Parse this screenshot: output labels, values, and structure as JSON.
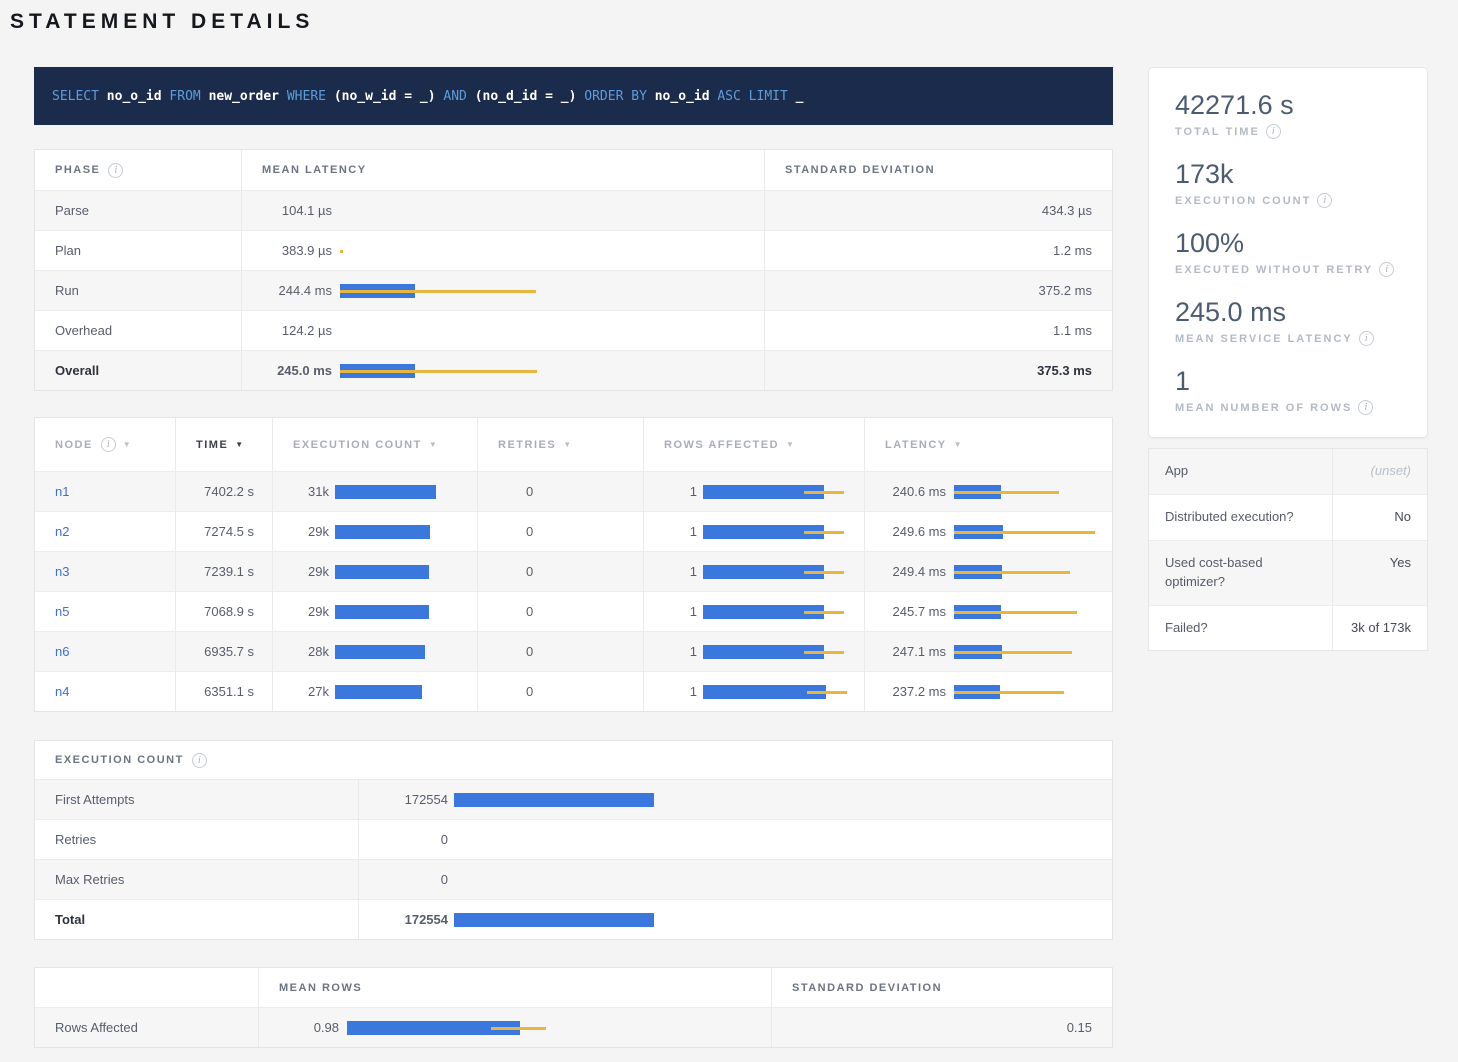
{
  "page_title": "STATEMENT DETAILS",
  "colors": {
    "bar_blue": "#3b78dd",
    "bar_yellow": "#e9b63d",
    "sql_background": "#1b2b4c",
    "sql_keyword": "#5e9dd8",
    "node_link": "#3f6fd8"
  },
  "sql": {
    "tokens": [
      {
        "t": "kw",
        "s": "SELECT "
      },
      {
        "t": "id",
        "s": "no_o_id "
      },
      {
        "t": "kw",
        "s": "FROM "
      },
      {
        "t": "id",
        "s": "new_order "
      },
      {
        "t": "kw",
        "s": "WHERE "
      },
      {
        "t": "id",
        "s": "(no_w_id = _) "
      },
      {
        "t": "kw",
        "s": "AND "
      },
      {
        "t": "id",
        "s": "(no_d_id = _) "
      },
      {
        "t": "kw",
        "s": "ORDER BY "
      },
      {
        "t": "id",
        "s": "no_o_id "
      },
      {
        "t": "kw",
        "s": "ASC LIMIT "
      },
      {
        "t": "id",
        "s": "_"
      }
    ]
  },
  "phase_table": {
    "headers": {
      "phase": "PHASE",
      "mean": "MEAN LATENCY",
      "std": "STANDARD DEVIATION"
    },
    "rows": [
      {
        "phase": "Parse",
        "mean": "104.1 µs",
        "std": "434.3 µs"
      },
      {
        "phase": "Plan",
        "mean": "383.9 µs",
        "std": "1.2 ms",
        "bar": {
          "blue": 0,
          "whisker_start": 0,
          "whisker_end": 3
        }
      },
      {
        "phase": "Run",
        "mean": "244.4 ms",
        "std": "375.2 ms",
        "bar": {
          "blue": 75,
          "whisker_start": 0,
          "whisker_end": 196
        }
      },
      {
        "phase": "Overhead",
        "mean": "124.2 µs",
        "std": "1.1 ms"
      },
      {
        "phase": "Overall",
        "mean": "245.0 ms",
        "std": "375.3 ms",
        "bar": {
          "blue": 75,
          "whisker_start": 0,
          "whisker_end": 197
        },
        "bold": true
      }
    ]
  },
  "node_table": {
    "headers": [
      {
        "label": "NODE",
        "info": true,
        "sortable": true
      },
      {
        "label": "TIME",
        "sortable": true,
        "active": true
      },
      {
        "label": "EXECUTION COUNT",
        "sortable": true
      },
      {
        "label": "RETRIES",
        "sortable": true
      },
      {
        "label": "ROWS AFFECTED",
        "sortable": true
      },
      {
        "label": "LATENCY",
        "sortable": true
      }
    ],
    "rows": [
      {
        "node": "n1",
        "time": "7402.2 s",
        "exec": "31k",
        "exec_bar": {
          "blue": 101
        },
        "retries": "0",
        "rows": "1",
        "rows_bar": {
          "blue": 121,
          "whisker_start": 101,
          "whisker_end": 141
        },
        "latency": "240.6 ms",
        "latency_bar": {
          "blue": 47,
          "whisker_start": 0,
          "whisker_end": 105
        }
      },
      {
        "node": "n2",
        "time": "7274.5 s",
        "exec": "29k",
        "exec_bar": {
          "blue": 95
        },
        "retries": "0",
        "rows": "1",
        "rows_bar": {
          "blue": 121,
          "whisker_start": 101,
          "whisker_end": 141
        },
        "latency": "249.6 ms",
        "latency_bar": {
          "blue": 49,
          "whisker_start": 0,
          "whisker_end": 141
        }
      },
      {
        "node": "n3",
        "time": "7239.1 s",
        "exec": "29k",
        "exec_bar": {
          "blue": 94
        },
        "retries": "0",
        "rows": "1",
        "rows_bar": {
          "blue": 121,
          "whisker_start": 101,
          "whisker_end": 141
        },
        "latency": "249.4 ms",
        "latency_bar": {
          "blue": 48,
          "whisker_start": 0,
          "whisker_end": 116
        }
      },
      {
        "node": "n5",
        "time": "7068.9 s",
        "exec": "29k",
        "exec_bar": {
          "blue": 94
        },
        "retries": "0",
        "rows": "1",
        "rows_bar": {
          "blue": 121,
          "whisker_start": 101,
          "whisker_end": 141
        },
        "latency": "245.7 ms",
        "latency_bar": {
          "blue": 47,
          "whisker_start": 0,
          "whisker_end": 123
        }
      },
      {
        "node": "n6",
        "time": "6935.7 s",
        "exec": "28k",
        "exec_bar": {
          "blue": 90
        },
        "retries": "0",
        "rows": "1",
        "rows_bar": {
          "blue": 121,
          "whisker_start": 101,
          "whisker_end": 141
        },
        "latency": "247.1 ms",
        "latency_bar": {
          "blue": 48,
          "whisker_start": 0,
          "whisker_end": 118
        }
      },
      {
        "node": "n4",
        "time": "6351.1 s",
        "exec": "27k",
        "exec_bar": {
          "blue": 87
        },
        "retries": "0",
        "rows": "1",
        "rows_bar": {
          "blue": 123,
          "whisker_start": 104,
          "whisker_end": 144
        },
        "latency": "237.2 ms",
        "latency_bar": {
          "blue": 46,
          "whisker_start": 0,
          "whisker_end": 110
        }
      }
    ]
  },
  "execution_count_table": {
    "title": "EXECUTION COUNT",
    "rows": [
      {
        "label": "First Attempts",
        "value": "172554",
        "bar": {
          "blue": 200
        }
      },
      {
        "label": "Retries",
        "value": "0"
      },
      {
        "label": "Max Retries",
        "value": "0"
      },
      {
        "label": "Total",
        "value": "172554",
        "bar": {
          "blue": 200
        },
        "bold": true
      }
    ]
  },
  "rows_affected_table": {
    "headers": {
      "label": "",
      "mean": "MEAN ROWS",
      "std": "STANDARD DEVIATION"
    },
    "rows": [
      {
        "label": "Rows Affected",
        "mean": "0.98",
        "mean_bar": {
          "blue": 173,
          "whisker_start": 144,
          "whisker_end": 199
        },
        "std": "0.15"
      }
    ]
  },
  "summary_stats": [
    {
      "value": "42271.6 s",
      "label": "TOTAL TIME"
    },
    {
      "value": "173k",
      "label": "EXECUTION COUNT"
    },
    {
      "value": "100%",
      "label": "EXECUTED WITHOUT RETRY"
    },
    {
      "value": "245.0 ms",
      "label": "MEAN SERVICE LATENCY"
    },
    {
      "value": "1",
      "label": "MEAN NUMBER OF ROWS"
    }
  ],
  "details_panel": {
    "rows": [
      {
        "label": "App",
        "value": "(unset)",
        "muted": true
      },
      {
        "label": "Distributed execution?",
        "value": "No"
      },
      {
        "label": "Used cost-based optimizer?",
        "value": "Yes"
      },
      {
        "label": "Failed?",
        "value": "3k of 173k"
      }
    ]
  }
}
